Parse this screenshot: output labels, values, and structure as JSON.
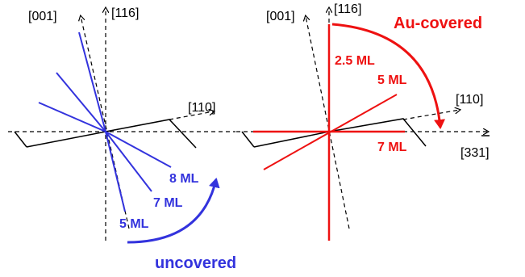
{
  "colors": {
    "blue": "#3333dd",
    "red": "#ee1111",
    "black": "#000000"
  },
  "left_panel": {
    "axis_001": "[001]",
    "axis_116": "[116]",
    "axis_110": "[110]",
    "labels": {
      "ml8": "8 ML",
      "ml7": "7 ML",
      "ml5": "5 ML"
    },
    "caption": "uncovered"
  },
  "right_panel": {
    "axis_001": "[001]",
    "axis_116": "[116]",
    "axis_110": "[110]",
    "axis_331": "[331]",
    "labels": {
      "ml25": "2.5 ML",
      "ml5": "5 ML",
      "ml7": "7 ML"
    },
    "caption": "Au-covered"
  }
}
